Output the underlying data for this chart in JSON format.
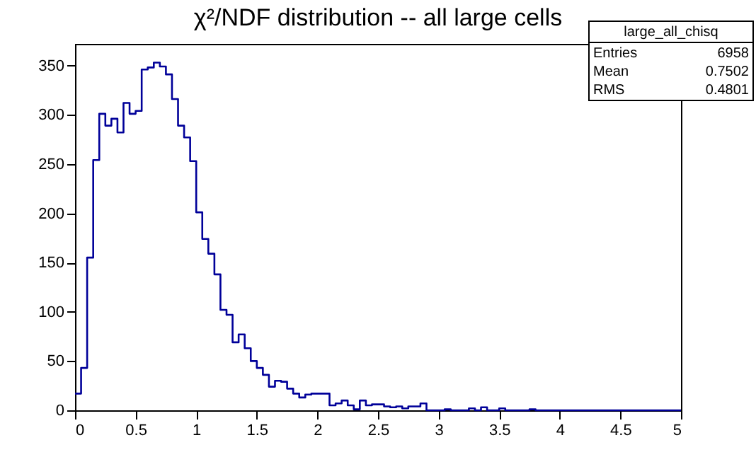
{
  "chart_data": {
    "type": "histogram",
    "title": "χ²/NDF distribution -- all large cells",
    "bins": [
      0,
      0.05,
      0.1,
      0.15,
      0.2,
      0.25,
      0.3,
      0.35,
      0.4,
      0.45,
      0.5,
      0.55,
      0.6,
      0.65,
      0.7,
      0.75,
      0.8,
      0.85,
      0.9,
      0.95,
      1,
      1.05,
      1.1,
      1.15,
      1.2,
      1.25,
      1.3,
      1.35,
      1.4,
      1.45,
      1.5,
      1.55,
      1.6,
      1.65,
      1.7,
      1.75,
      1.8,
      1.85,
      1.9,
      1.95,
      2,
      2.05,
      2.1,
      2.15,
      2.2,
      2.25,
      2.3,
      2.35,
      2.4,
      2.45,
      2.5,
      2.55,
      2.6,
      2.65,
      2.7,
      2.75,
      2.8,
      2.85,
      2.9,
      2.95,
      3,
      3.05,
      3.1,
      3.15,
      3.2,
      3.25,
      3.3,
      3.35,
      3.4,
      3.45,
      3.5,
      3.55,
      3.6,
      3.65,
      3.7,
      3.75,
      3.8,
      3.85,
      3.9,
      3.95,
      4,
      4.05,
      4.1,
      4.15,
      4.2,
      4.25,
      4.3,
      4.35,
      4.4,
      4.45,
      4.5,
      4.55,
      4.6,
      4.65,
      4.7,
      4.75,
      4.8,
      4.85,
      4.9,
      4.95,
      5
    ],
    "values": [
      17,
      43,
      155,
      254,
      301,
      289,
      296,
      282,
      312,
      301,
      304,
      346,
      348,
      353,
      349,
      341,
      316,
      289,
      277,
      253,
      201,
      174,
      159,
      138,
      102,
      97,
      69,
      77,
      63,
      50,
      43,
      36,
      24,
      30,
      29,
      22,
      17,
      13,
      16,
      17,
      17,
      17,
      5,
      7,
      10,
      5,
      1,
      10,
      5,
      6,
      6,
      4,
      3,
      4,
      2,
      4,
      4,
      7,
      0,
      0,
      0,
      1,
      0,
      0,
      0,
      2,
      0,
      3,
      0,
      0,
      2,
      0,
      0,
      0,
      0,
      1,
      0,
      0,
      0,
      0,
      0,
      0,
      0,
      0,
      0,
      0,
      0,
      0,
      0,
      0,
      0,
      0,
      0,
      0,
      0,
      0,
      0,
      0,
      0,
      0
    ],
    "color": "#000099",
    "xlim": [
      0,
      5
    ],
    "xticks": [
      0,
      0.5,
      1,
      1.5,
      2,
      2.5,
      3,
      3.5,
      4,
      4.5,
      5
    ],
    "ylim": [
      0,
      372
    ],
    "yticks": [
      0,
      50,
      100,
      150,
      200,
      250,
      300,
      350
    ],
    "grid": false,
    "legend": false,
    "annotations": [
      "large_all_chisq",
      "Entries 6958",
      "Mean 0.7502",
      "RMS 0.4801"
    ]
  }
}
